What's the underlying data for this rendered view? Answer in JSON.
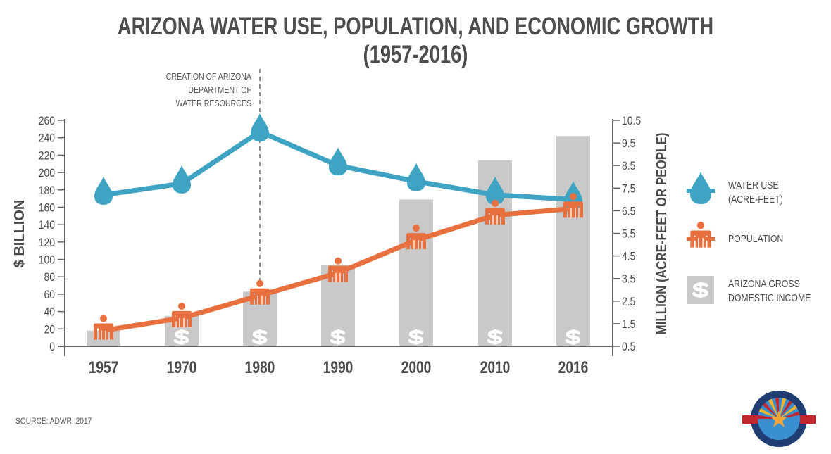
{
  "chart_data": {
    "type": "bar",
    "title": "ARIZONA WATER USE, POPULATION, AND ECONOMIC GROWTH (1957-2016)",
    "categories": [
      "1957",
      "1970",
      "1980",
      "1990",
      "2000",
      "2010",
      "2016"
    ],
    "ylabel_left": "$ BILLION",
    "ylabel_right": "MILLION (ACRE-FEET OR PEOPLE)",
    "ylim_left": [
      0,
      260
    ],
    "ylim_right": [
      0.5,
      10.5
    ],
    "yticks_left": [
      "0",
      "20",
      "40",
      "60",
      "80",
      "100",
      "120",
      "140",
      "160",
      "180",
      "200",
      "220",
      "240",
      "260"
    ],
    "yticks_right": [
      "0.5",
      "1.5",
      "2.5",
      "3.5",
      "4.5",
      "5.5",
      "6.5",
      "7.5",
      "8.5",
      "9.5",
      "10.5"
    ],
    "grid": false,
    "series": [
      {
        "name": "ARIZONA GROSS DOMESTIC INCOME",
        "type": "bar",
        "axis": "left",
        "color": "#c9c9c9",
        "values": [
          18,
          35,
          63,
          94,
          169,
          214,
          242
        ]
      },
      {
        "name": "WATER USE (ACRE-FEET)",
        "type": "line",
        "axis": "right",
        "color": "#3fa4c3",
        "marker": "drop",
        "values": [
          7.2,
          7.7,
          10.0,
          8.5,
          7.8,
          7.2,
          7.0
        ]
      },
      {
        "name": "POPULATION",
        "type": "line",
        "axis": "right",
        "color": "#e8703f",
        "marker": "person",
        "values": [
          1.2,
          1.75,
          2.75,
          3.75,
          5.2,
          6.3,
          6.6
        ]
      }
    ],
    "annotation": {
      "category": "1980",
      "lines": [
        "CREATION OF ARIZONA",
        "DEPARTMENT OF",
        "WATER RESOURCES"
      ]
    },
    "legend": {
      "placement": "right",
      "items": [
        {
          "icon": "water-drop-icon",
          "lines": [
            "WATER USE",
            "(ACRE-FEET)"
          ]
        },
        {
          "icon": "person-icon",
          "lines": [
            "POPULATION"
          ]
        },
        {
          "icon": "dollar-icon",
          "lines": [
            "ARIZONA GROSS",
            "DOMESTIC INCOME"
          ]
        }
      ]
    },
    "source": "SOURCE: ADWR, 2017"
  },
  "logo": {
    "name": "arizona-department-water-resources-logo"
  }
}
